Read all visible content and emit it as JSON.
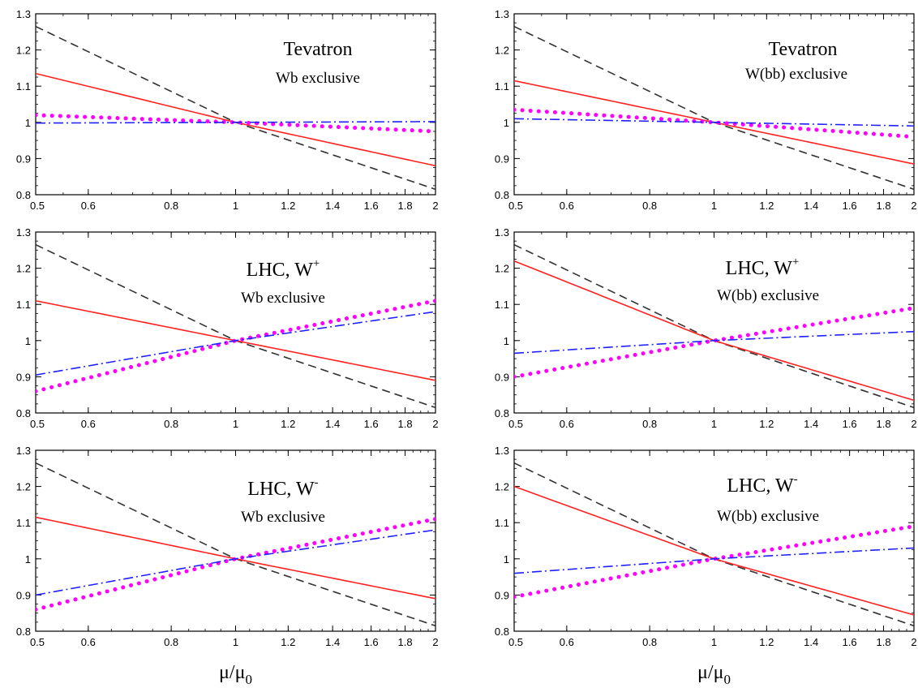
{
  "chart_data": [
    {
      "type": "line",
      "title": "Tevatron",
      "subtitle": "Wb exclusive",
      "xlabel": "",
      "ylabel": "",
      "xscale": "log",
      "xlim": [
        0.5,
        2
      ],
      "ylim": [
        0.8,
        1.3
      ],
      "x_ticks": [
        "0.5",
        "0.6",
        "0.8",
        "1",
        "1.2",
        "1.4",
        "1.6",
        "1.8",
        "2"
      ],
      "y_ticks": [
        "0.8",
        "0.9",
        "1",
        "1.1",
        "1.2",
        "1.3"
      ],
      "grid": false,
      "legend": "none",
      "series": [
        {
          "style": "dashed",
          "color": "#333333",
          "x": [
            0.5,
            1,
            2
          ],
          "y": [
            1.265,
            1.0,
            0.815
          ]
        },
        {
          "style": "solid",
          "color": "#ff2020",
          "x": [
            0.5,
            1,
            2
          ],
          "y": [
            1.135,
            1.0,
            0.88
          ]
        },
        {
          "style": "dotted",
          "color": "#ff00ff",
          "x": [
            0.5,
            1,
            2
          ],
          "y": [
            1.02,
            1.0,
            0.975
          ]
        },
        {
          "style": "dashdot",
          "color": "#2020ff",
          "x": [
            0.5,
            1,
            2
          ],
          "y": [
            0.998,
            1.0,
            1.002
          ]
        }
      ]
    },
    {
      "type": "line",
      "title": "Tevatron",
      "subtitle": "W(bb) exclusive",
      "xlabel": "",
      "ylabel": "",
      "xscale": "log",
      "xlim": [
        0.5,
        2
      ],
      "ylim": [
        0.8,
        1.3
      ],
      "x_ticks": [
        "0.5",
        "0.6",
        "0.8",
        "1",
        "1.2",
        "1.4",
        "1.6",
        "1.8",
        "2"
      ],
      "y_ticks": [
        "0.8",
        "0.9",
        "1",
        "1.1",
        "1.2",
        "1.3"
      ],
      "grid": false,
      "legend": "none",
      "series": [
        {
          "style": "dashed",
          "color": "#333333",
          "x": [
            0.5,
            1,
            2
          ],
          "y": [
            1.265,
            1.0,
            0.815
          ]
        },
        {
          "style": "solid",
          "color": "#ff2020",
          "x": [
            0.5,
            1,
            2
          ],
          "y": [
            1.115,
            1.0,
            0.885
          ]
        },
        {
          "style": "dotted",
          "color": "#ff00ff",
          "x": [
            0.5,
            1,
            2
          ],
          "y": [
            1.035,
            1.0,
            0.96
          ]
        },
        {
          "style": "dashdot",
          "color": "#2020ff",
          "x": [
            0.5,
            1,
            2
          ],
          "y": [
            1.01,
            1.0,
            0.99
          ]
        }
      ]
    },
    {
      "type": "line",
      "title": "LHC, W",
      "title_superscript": "+",
      "subtitle": "Wb exclusive",
      "xlabel": "",
      "ylabel": "",
      "xscale": "log",
      "xlim": [
        0.5,
        2
      ],
      "ylim": [
        0.8,
        1.3
      ],
      "x_ticks": [
        "0.5",
        "0.6",
        "0.8",
        "1",
        "1.2",
        "1.4",
        "1.6",
        "1.8",
        "2"
      ],
      "y_ticks": [
        "0.8",
        "0.9",
        "1",
        "1.1",
        "1.2",
        "1.3"
      ],
      "grid": false,
      "legend": "none",
      "series": [
        {
          "style": "dashed",
          "color": "#333333",
          "x": [
            0.5,
            1,
            2
          ],
          "y": [
            1.265,
            1.0,
            0.815
          ]
        },
        {
          "style": "solid",
          "color": "#ff2020",
          "x": [
            0.5,
            1,
            2
          ],
          "y": [
            1.11,
            1.0,
            0.89
          ]
        },
        {
          "style": "dotted",
          "color": "#ff00ff",
          "x": [
            0.5,
            1,
            2
          ],
          "y": [
            0.86,
            1.0,
            1.11
          ]
        },
        {
          "style": "dashdot",
          "color": "#2020ff",
          "x": [
            0.5,
            1,
            2
          ],
          "y": [
            0.905,
            1.0,
            1.08
          ]
        }
      ]
    },
    {
      "type": "line",
      "title": "LHC, W",
      "title_superscript": "+",
      "subtitle": "W(bb) exclusive",
      "xlabel": "",
      "ylabel": "",
      "xscale": "log",
      "xlim": [
        0.5,
        2
      ],
      "ylim": [
        0.8,
        1.3
      ],
      "x_ticks": [
        "0.5",
        "0.6",
        "0.8",
        "1",
        "1.2",
        "1.4",
        "1.6",
        "1.8",
        "2"
      ],
      "y_ticks": [
        "0.8",
        "0.9",
        "1",
        "1.1",
        "1.2",
        "1.3"
      ],
      "grid": false,
      "legend": "none",
      "series": [
        {
          "style": "dashed",
          "color": "#333333",
          "x": [
            0.5,
            1,
            2
          ],
          "y": [
            1.265,
            1.0,
            0.815
          ]
        },
        {
          "style": "solid",
          "color": "#ff2020",
          "x": [
            0.5,
            1,
            2
          ],
          "y": [
            1.22,
            1.0,
            0.835
          ]
        },
        {
          "style": "dotted",
          "color": "#ff00ff",
          "x": [
            0.5,
            1,
            2
          ],
          "y": [
            0.9,
            1.0,
            1.09
          ]
        },
        {
          "style": "dashdot",
          "color": "#2020ff",
          "x": [
            0.5,
            1,
            2
          ],
          "y": [
            0.965,
            1.0,
            1.025
          ]
        }
      ]
    },
    {
      "type": "line",
      "title": "LHC, W",
      "title_superscript": "-",
      "subtitle": "Wb exclusive",
      "xlabel": "μ/μ0",
      "ylabel": "",
      "xscale": "log",
      "xlim": [
        0.5,
        2
      ],
      "ylim": [
        0.8,
        1.3
      ],
      "x_ticks": [
        "0.5",
        "0.6",
        "0.8",
        "1",
        "1.2",
        "1.4",
        "1.6",
        "1.8",
        "2"
      ],
      "y_ticks": [
        "0.8",
        "0.9",
        "1",
        "1.1",
        "1.2",
        "1.3"
      ],
      "grid": false,
      "legend": "none",
      "series": [
        {
          "style": "dashed",
          "color": "#333333",
          "x": [
            0.5,
            1,
            2
          ],
          "y": [
            1.265,
            1.0,
            0.815
          ]
        },
        {
          "style": "solid",
          "color": "#ff2020",
          "x": [
            0.5,
            1,
            2
          ],
          "y": [
            1.115,
            1.0,
            0.89
          ]
        },
        {
          "style": "dotted",
          "color": "#ff00ff",
          "x": [
            0.5,
            1,
            2
          ],
          "y": [
            0.86,
            1.0,
            1.11
          ]
        },
        {
          "style": "dashdot",
          "color": "#2020ff",
          "x": [
            0.5,
            1,
            2
          ],
          "y": [
            0.9,
            1.0,
            1.08
          ]
        }
      ]
    },
    {
      "type": "line",
      "title": "LHC, W",
      "title_superscript": "-",
      "subtitle": "W(bb) exclusive",
      "xlabel": "μ/μ0",
      "ylabel": "",
      "xscale": "log",
      "xlim": [
        0.5,
        2
      ],
      "ylim": [
        0.8,
        1.3
      ],
      "x_ticks": [
        "0.5",
        "0.6",
        "0.8",
        "1",
        "1.2",
        "1.4",
        "1.6",
        "1.8",
        "2"
      ],
      "y_ticks": [
        "0.8",
        "0.9",
        "1",
        "1.1",
        "1.2",
        "1.3"
      ],
      "grid": false,
      "legend": "none",
      "series": [
        {
          "style": "dashed",
          "color": "#333333",
          "x": [
            0.5,
            1,
            2
          ],
          "y": [
            1.265,
            1.0,
            0.815
          ]
        },
        {
          "style": "solid",
          "color": "#ff2020",
          "x": [
            0.5,
            1,
            2
          ],
          "y": [
            1.2,
            1.0,
            0.845
          ]
        },
        {
          "style": "dotted",
          "color": "#ff00ff",
          "x": [
            0.5,
            1,
            2
          ],
          "y": [
            0.895,
            1.0,
            1.09
          ]
        },
        {
          "style": "dashdot",
          "color": "#2020ff",
          "x": [
            0.5,
            1,
            2
          ],
          "y": [
            0.96,
            1.0,
            1.03
          ]
        }
      ]
    }
  ]
}
